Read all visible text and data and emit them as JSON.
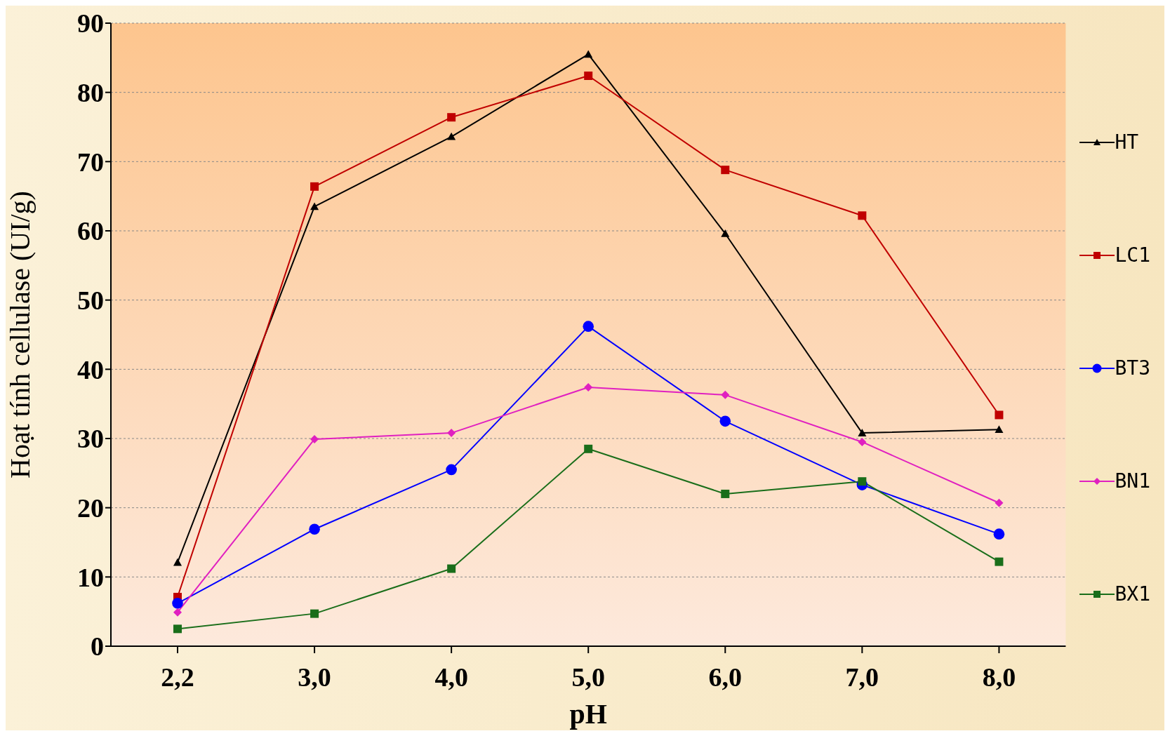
{
  "chart_data": {
    "type": "line",
    "xlabel": "pH",
    "ylabel": "Hoạt tính cellulase (UI/g)",
    "categories": [
      "2,2",
      "3,0",
      "4,0",
      "5,0",
      "6,0",
      "7,0",
      "8,0"
    ],
    "ylim": [
      0,
      90
    ],
    "yticks": [
      0,
      10,
      20,
      30,
      40,
      50,
      60,
      70,
      80,
      90
    ],
    "grid": "y",
    "legend": "right",
    "series": [
      {
        "name": "HT",
        "color": "#000000",
        "marker": "triangle",
        "values": [
          12.1,
          63.5,
          73.6,
          85.5,
          59.6,
          30.8,
          31.3
        ]
      },
      {
        "name": "LC1",
        "color": "#c00000",
        "marker": "square",
        "values": [
          7.1,
          66.4,
          76.4,
          82.4,
          68.8,
          62.2,
          33.4
        ]
      },
      {
        "name": "BT3",
        "color": "#0000ff",
        "marker": "circle",
        "values": [
          6.2,
          16.9,
          25.5,
          46.2,
          32.5,
          23.3,
          16.2
        ]
      },
      {
        "name": "BN1",
        "color": "#e020c0",
        "marker": "diamond",
        "values": [
          4.9,
          29.9,
          30.8,
          37.4,
          36.3,
          29.5,
          20.7
        ]
      },
      {
        "name": "BX1",
        "color": "#1a6e1a",
        "marker": "square",
        "values": [
          2.5,
          4.7,
          11.2,
          28.5,
          22.0,
          23.8,
          12.2
        ]
      }
    ]
  }
}
